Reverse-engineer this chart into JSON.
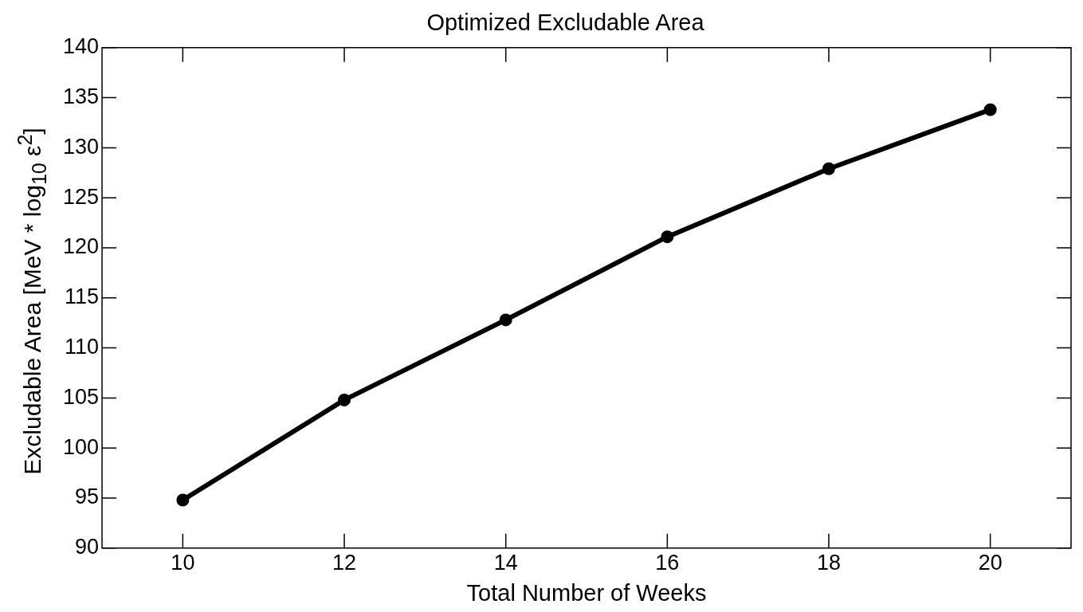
{
  "chart_data": {
    "type": "line",
    "title": "Optimized Excludable Area",
    "xlabel": "Total Number of Weeks",
    "ylabel": "Excludable Area [MeV * log$_{10}$ ε$^{2}$]",
    "x": [
      10,
      12,
      14,
      16,
      18,
      20
    ],
    "series": [
      {
        "color": "#000000",
        "values": [
          94.8,
          104.8,
          112.8,
          121.1,
          127.9,
          133.8
        ]
      }
    ],
    "xlim": [
      9,
      21
    ],
    "xticks": [
      10,
      12,
      14,
      16,
      18,
      20
    ],
    "ylim": [
      90,
      140
    ],
    "yticks": [
      90,
      95,
      100,
      105,
      110,
      115,
      120,
      125,
      130,
      135,
      140
    ],
    "marker": "circle",
    "line_style": "solid",
    "grid": false,
    "legend": false
  }
}
